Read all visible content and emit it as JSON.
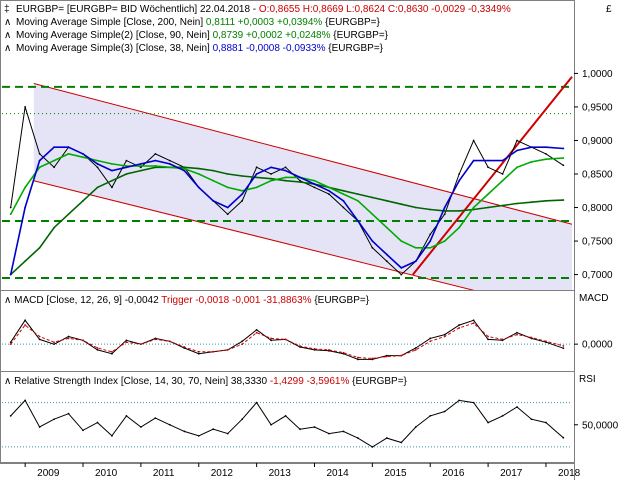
{
  "chart_data": [
    {
      "type": "line",
      "panel": "price",
      "currency_label": "£",
      "y_scale": "linear",
      "ylim": [
        0.68,
        1.02
      ],
      "y_ticks": [
        0.7,
        0.75,
        0.8,
        0.85,
        0.9,
        0.95,
        1.0
      ],
      "y_tick_labels": [
        "0,7000",
        "0,7500",
        "0,8000",
        "0,8500",
        "0,9000",
        "0,9500",
        "1,0000"
      ],
      "legend": [
        {
          "icon": "candle",
          "text": "EURGBP= [EURGBP= BID Wöchentlich] 22.04.2018 - ",
          "ohlc": "O:0,8655 H:0,8669 L:0,8624 C:0,8630 -0,0029 -0,3349%",
          "ohlc_color": "#cc0000"
        },
        {
          "icon": "ma",
          "text": "Moving Average Simple [Close, 200, Nein]",
          "values": "0,8111 +0,0003 +0,0394%",
          "values_color": "#008000",
          "suffix": "{EURGBP=}"
        },
        {
          "icon": "ma",
          "text": "Moving Average Simple(2) [Close, 90, Nein]",
          "values": "0,8739 +0,0002 +0,0248%",
          "values_color": "#008000",
          "suffix": "{EURGBP=}"
        },
        {
          "icon": "ma",
          "text": "Moving Average Simple(3) [Close, 38, Nein]",
          "values": "0,8881 -0,0008 -0,0933%",
          "values_color": "#0000cc",
          "suffix": "{EURGBP=}"
        }
      ],
      "x": [
        2008.75,
        2009.0,
        2009.25,
        2009.5,
        2009.75,
        2010.0,
        2010.25,
        2010.5,
        2010.75,
        2011.0,
        2011.25,
        2011.5,
        2011.75,
        2012.0,
        2012.25,
        2012.5,
        2012.75,
        2013.0,
        2013.25,
        2013.5,
        2013.75,
        2014.0,
        2014.25,
        2014.5,
        2014.75,
        2015.0,
        2015.25,
        2015.5,
        2015.75,
        2016.0,
        2016.25,
        2016.5,
        2016.75,
        2017.0,
        2017.25,
        2017.5,
        2017.75,
        2018.0,
        2018.3
      ],
      "series": [
        {
          "name": "EURGBP=",
          "color": "#000000",
          "values": [
            0.8,
            0.95,
            0.88,
            0.86,
            0.89,
            0.88,
            0.86,
            0.83,
            0.87,
            0.86,
            0.88,
            0.87,
            0.86,
            0.83,
            0.81,
            0.79,
            0.81,
            0.86,
            0.85,
            0.86,
            0.84,
            0.83,
            0.82,
            0.8,
            0.78,
            0.74,
            0.72,
            0.7,
            0.72,
            0.76,
            0.79,
            0.85,
            0.9,
            0.86,
            0.85,
            0.9,
            0.89,
            0.88,
            0.863
          ]
        },
        {
          "name": "Moving Average Simple [Close, 200, Nein]",
          "color": "#006400",
          "values": [
            0.7,
            0.72,
            0.74,
            0.77,
            0.79,
            0.81,
            0.83,
            0.84,
            0.85,
            0.855,
            0.86,
            0.86,
            0.86,
            0.858,
            0.855,
            0.85,
            0.847,
            0.845,
            0.843,
            0.84,
            0.838,
            0.835,
            0.83,
            0.825,
            0.82,
            0.815,
            0.81,
            0.805,
            0.8,
            0.797,
            0.795,
            0.795,
            0.797,
            0.8,
            0.803,
            0.806,
            0.808,
            0.81,
            0.8111
          ]
        },
        {
          "name": "Moving Average Simple(2) [Close, 90, Nein]",
          "color": "#00aa00",
          "values": [
            0.79,
            0.83,
            0.86,
            0.87,
            0.88,
            0.875,
            0.87,
            0.865,
            0.862,
            0.862,
            0.862,
            0.86,
            0.858,
            0.85,
            0.84,
            0.83,
            0.825,
            0.83,
            0.84,
            0.845,
            0.845,
            0.84,
            0.83,
            0.82,
            0.81,
            0.79,
            0.77,
            0.75,
            0.74,
            0.74,
            0.75,
            0.77,
            0.8,
            0.82,
            0.84,
            0.86,
            0.868,
            0.872,
            0.8739
          ]
        },
        {
          "name": "Moving Average Simple(3) [Close, 38, Nein]",
          "color": "#0000cc",
          "values": [
            0.7,
            0.8,
            0.87,
            0.89,
            0.89,
            0.88,
            0.865,
            0.855,
            0.86,
            0.865,
            0.87,
            0.865,
            0.855,
            0.83,
            0.81,
            0.8,
            0.82,
            0.85,
            0.86,
            0.855,
            0.845,
            0.835,
            0.825,
            0.81,
            0.78,
            0.75,
            0.73,
            0.71,
            0.72,
            0.75,
            0.8,
            0.84,
            0.87,
            0.87,
            0.87,
            0.885,
            0.89,
            0.89,
            0.8881
          ]
        }
      ],
      "horizontal_levels": [
        0.98,
        0.78,
        0.695
      ],
      "dotted_levels": [
        0.94
      ],
      "channel_color": "#cc0000"
    },
    {
      "type": "line",
      "panel": "macd",
      "label": "MACD",
      "legend": {
        "text": "MACD [Close, 12, 26, 9] -0,0042",
        "trigger": "Trigger -0,0018 -0,001 -31,8863%",
        "trigger_color": "#cc0000",
        "suffix": "{EURGBP=}"
      },
      "ylim": [
        -0.025,
        0.04
      ],
      "y_ticks": [
        0
      ],
      "y_tick_labels": [
        "0,0000"
      ],
      "x": [
        2008.75,
        2009.0,
        2009.25,
        2009.5,
        2009.75,
        2010.0,
        2010.25,
        2010.5,
        2010.75,
        2011.0,
        2011.25,
        2011.5,
        2011.75,
        2012.0,
        2012.25,
        2012.5,
        2012.75,
        2013.0,
        2013.25,
        2013.5,
        2013.75,
        2014.0,
        2014.25,
        2014.5,
        2014.75,
        2015.0,
        2015.25,
        2015.5,
        2015.75,
        2016.0,
        2016.25,
        2016.5,
        2016.75,
        2017.0,
        2017.25,
        2017.5,
        2017.75,
        2018.0,
        2018.3
      ],
      "series": [
        {
          "name": "MACD",
          "color": "#000000",
          "values": [
            0.002,
            0.025,
            0.005,
            0.0,
            0.008,
            0.004,
            -0.006,
            -0.01,
            0.004,
            0.0,
            0.006,
            0.003,
            -0.004,
            -0.01,
            -0.008,
            -0.006,
            0.003,
            0.015,
            0.004,
            0.005,
            -0.003,
            -0.006,
            -0.007,
            -0.01,
            -0.016,
            -0.016,
            -0.012,
            -0.012,
            -0.004,
            0.006,
            0.01,
            0.02,
            0.025,
            0.005,
            0.004,
            0.012,
            0.006,
            0.002,
            -0.0042
          ]
        },
        {
          "name": "Trigger",
          "color": "#cc0000",
          "values": [
            0.0,
            0.02,
            0.008,
            0.002,
            0.006,
            0.004,
            -0.004,
            -0.008,
            0.002,
            0.0,
            0.005,
            0.003,
            -0.003,
            -0.008,
            -0.008,
            -0.006,
            0.0,
            0.012,
            0.006,
            0.005,
            -0.002,
            -0.005,
            -0.006,
            -0.009,
            -0.014,
            -0.015,
            -0.013,
            -0.012,
            -0.006,
            0.003,
            0.008,
            0.017,
            0.022,
            0.008,
            0.005,
            0.01,
            0.007,
            0.003,
            -0.0018
          ]
        }
      ]
    },
    {
      "type": "line",
      "panel": "rsi",
      "label": "RSI",
      "legend": {
        "text": "Relative Strength Index [Close, 14, 30, 70, Nein] 38,3330",
        "change": "-1,4299 -3,5961%",
        "change_color": "#cc0000",
        "suffix": "{EURGBP=}"
      },
      "ylim": [
        20,
        85
      ],
      "y_ticks": [
        50
      ],
      "y_tick_labels": [
        "50,0000"
      ],
      "reference_levels": [
        30,
        70
      ],
      "x": [
        2008.75,
        2009.0,
        2009.25,
        2009.5,
        2009.75,
        2010.0,
        2010.25,
        2010.5,
        2010.75,
        2011.0,
        2011.25,
        2011.5,
        2011.75,
        2012.0,
        2012.25,
        2012.5,
        2012.75,
        2013.0,
        2013.25,
        2013.5,
        2013.75,
        2014.0,
        2014.25,
        2014.5,
        2014.75,
        2015.0,
        2015.25,
        2015.5,
        2015.75,
        2016.0,
        2016.25,
        2016.5,
        2016.75,
        2017.0,
        2017.25,
        2017.5,
        2017.75,
        2018.0,
        2018.3
      ],
      "series": [
        {
          "name": "RSI",
          "color": "#000000",
          "values": [
            58,
            72,
            48,
            55,
            60,
            45,
            52,
            40,
            58,
            48,
            56,
            50,
            44,
            40,
            46,
            42,
            55,
            70,
            50,
            58,
            46,
            48,
            42,
            44,
            38,
            30,
            38,
            34,
            48,
            58,
            62,
            72,
            70,
            52,
            58,
            66,
            55,
            52,
            38.333
          ]
        }
      ]
    }
  ],
  "x_axis": {
    "ticks": [
      2009,
      2010,
      2011,
      2012,
      2013,
      2014,
      2015,
      2016,
      2017,
      2018
    ],
    "tick_labels": [
      "2009",
      "2010",
      "2011",
      "2012",
      "2013",
      "2014",
      "2015",
      "2016",
      "2017",
      "2018"
    ],
    "xlim": [
      2008.6,
      2018.45
    ]
  }
}
